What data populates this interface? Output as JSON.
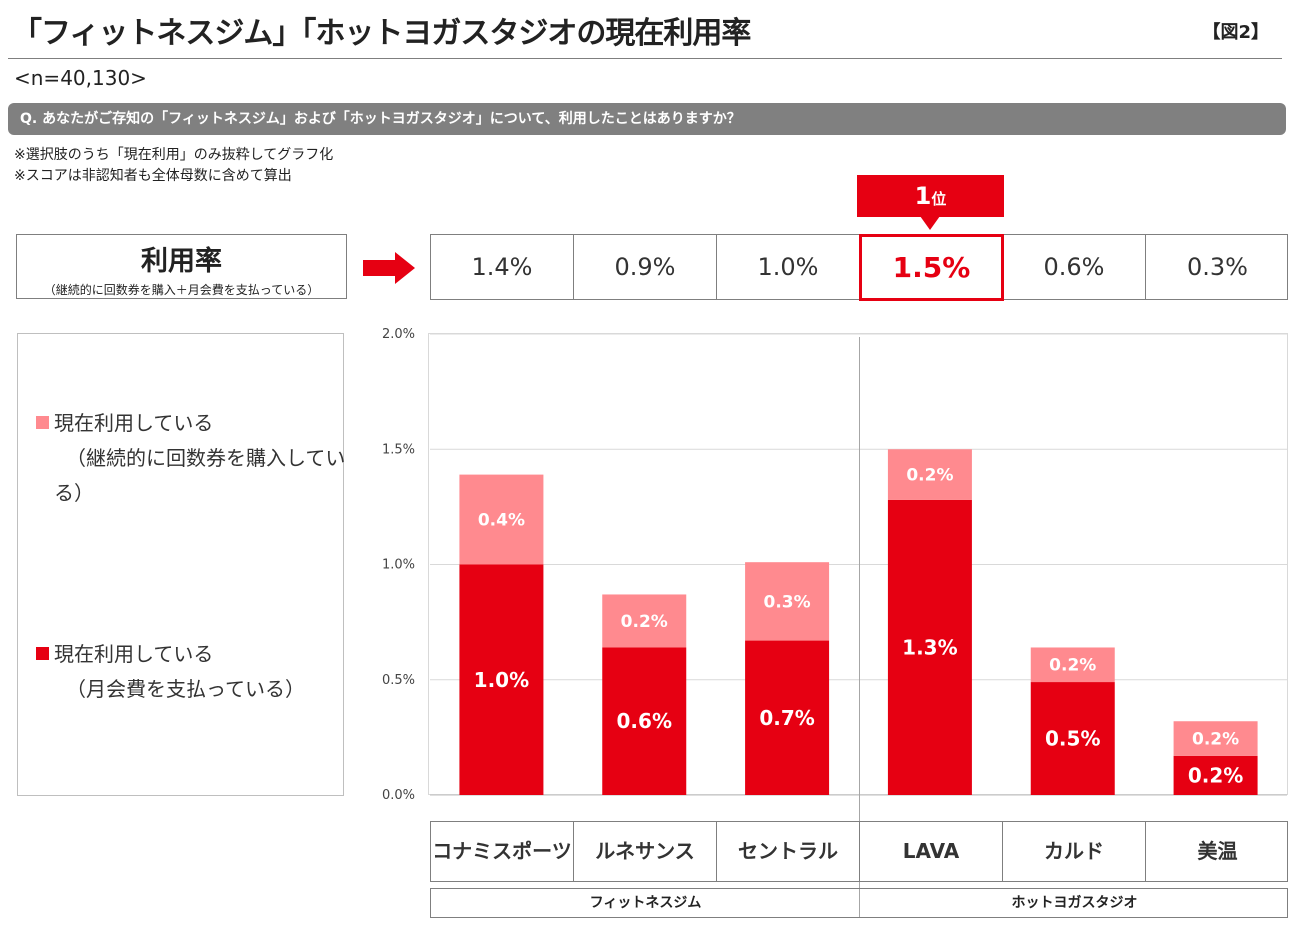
{
  "header": {
    "title": "「フィットネスジム」「ホットヨガスタジオの現在利用率",
    "figure_label": "【図2】",
    "sample": "<n=40,130>"
  },
  "question": "Q. あなたがご存知の「フィットネスジム」および「ホットヨガスタジオ」について、利用したことはありますか？",
  "notes": [
    "※選択肢のうち「現在利用」のみ抜粋してグラフ化",
    "※スコアは非認知者も全体母数に含めて算出"
  ],
  "rate_box": {
    "title": "利用率",
    "subtitle": "（継続的に回数券を購入＋月会費を支払っている）"
  },
  "rank_badge": {
    "number": "1",
    "suffix": "位"
  },
  "rates": [
    "1.4%",
    "0.9%",
    "1.0%",
    "1.5%",
    "0.6%",
    "0.3%"
  ],
  "highlight_index": 3,
  "legend": [
    {
      "lines": [
        "現在利用している",
        "（継続的に回数券を購入してい",
        "る）"
      ],
      "color": "#ff8a8f"
    },
    {
      "lines": [
        "現在利用している",
        "（月会費を支払っている）"
      ],
      "color": "#e60012"
    }
  ],
  "groups": [
    "フィットネスジム",
    "ホットヨガスタジオ"
  ],
  "colors": {
    "accent": "#e60012",
    "light": "#ff8a8f",
    "question_bar": "#808080"
  },
  "chart_data": {
    "type": "bar",
    "stacked": true,
    "categories": [
      "コナミスポーツ",
      "ルネサンス",
      "セントラル",
      "LAVA",
      "カルド",
      "美温"
    ],
    "series": [
      {
        "name": "現在利用している（月会費を支払っている）",
        "values": [
          1.0,
          0.64,
          0.67,
          1.28,
          0.49,
          0.17
        ],
        "labels": [
          "1.0%",
          "0.6%",
          "0.7%",
          "1.3%",
          "0.5%",
          "0.2%"
        ],
        "color": "#e60012"
      },
      {
        "name": "現在利用している（継続的に回数券を購入している）",
        "values": [
          0.39,
          0.23,
          0.34,
          0.22,
          0.15,
          0.15
        ],
        "labels": [
          "0.4%",
          "0.2%",
          "0.3%",
          "0.2%",
          "0.2%",
          "0.2%"
        ],
        "color": "#ff8a8f"
      }
    ],
    "y_ticks": [
      "0.0%",
      "0.5%",
      "1.0%",
      "1.5%",
      "2.0%"
    ],
    "ylim": [
      0,
      2.0
    ],
    "grid": true
  }
}
